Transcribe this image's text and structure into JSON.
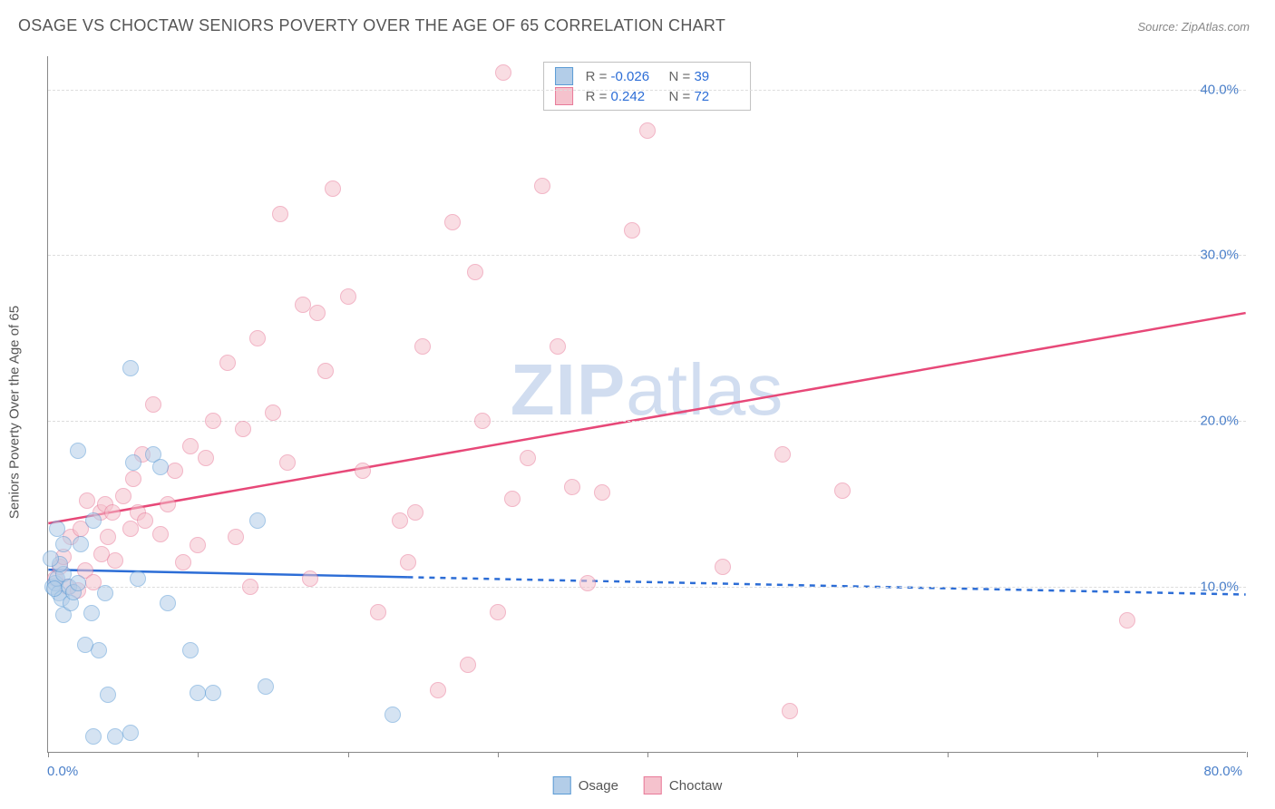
{
  "chart": {
    "title": "OSAGE VS CHOCTAW SENIORS POVERTY OVER THE AGE OF 65 CORRELATION CHART",
    "source_label": "Source: ZipAtlas.com",
    "y_axis_title": "Seniors Poverty Over the Age of 65",
    "watermark": {
      "zip": "ZIP",
      "atlas": "atlas"
    },
    "xlim": [
      0,
      80
    ],
    "ylim": [
      0,
      42
    ],
    "x_ticks": [
      0,
      10,
      20,
      30,
      40,
      50,
      60,
      70,
      80
    ],
    "x_tick_labels": {
      "start": "0.0%",
      "end": "80.0%"
    },
    "y_gridlines": [
      10,
      20,
      30,
      40
    ],
    "y_tick_labels": [
      "10.0%",
      "20.0%",
      "30.0%",
      "40.0%"
    ],
    "grid_color": "#dddddd",
    "series": {
      "osage": {
        "label": "Osage",
        "fill": "#b3cde8",
        "stroke": "#5b9bd5",
        "fill_opacity": 0.55,
        "R": "-0.026",
        "N": "39",
        "trend": {
          "y_at_xmin": 11.0,
          "y_at_xmax": 9.5,
          "solid_until_x": 24,
          "color": "#2c6dd6",
          "width": 2.5
        },
        "points": [
          [
            0.3,
            10.0
          ],
          [
            0.5,
            10.2
          ],
          [
            0.7,
            9.6
          ],
          [
            0.6,
            10.5
          ],
          [
            0.9,
            9.3
          ],
          [
            0.4,
            9.9
          ],
          [
            1.0,
            10.8
          ],
          [
            0.8,
            11.4
          ],
          [
            1.0,
            12.6
          ],
          [
            0.2,
            11.7
          ],
          [
            0.6,
            13.5
          ],
          [
            1.0,
            8.3
          ],
          [
            1.4,
            10.0
          ],
          [
            1.5,
            9.0
          ],
          [
            1.7,
            9.7
          ],
          [
            2.0,
            10.2
          ],
          [
            2.2,
            12.6
          ],
          [
            2.0,
            18.2
          ],
          [
            3.0,
            14.0
          ],
          [
            2.9,
            8.4
          ],
          [
            3.4,
            6.2
          ],
          [
            3.8,
            9.6
          ],
          [
            4.0,
            3.5
          ],
          [
            5.5,
            23.2
          ],
          [
            5.7,
            17.5
          ],
          [
            6.0,
            10.5
          ],
          [
            7.0,
            18.0
          ],
          [
            7.5,
            17.2
          ],
          [
            8.0,
            9.0
          ],
          [
            9.5,
            6.2
          ],
          [
            10.0,
            3.6
          ],
          [
            11.0,
            3.6
          ],
          [
            14.0,
            14.0
          ],
          [
            14.5,
            4.0
          ],
          [
            4.5,
            1.0
          ],
          [
            5.5,
            1.2
          ],
          [
            3.0,
            1.0
          ],
          [
            2.5,
            6.5
          ],
          [
            23.0,
            2.3
          ]
        ]
      },
      "choctaw": {
        "label": "Choctaw",
        "fill": "#f5c2cd",
        "stroke": "#e87a99",
        "fill_opacity": 0.55,
        "R": "0.242",
        "N": "72",
        "trend": {
          "y_at_xmin": 13.8,
          "y_at_xmax": 26.5,
          "solid_until_x": 80,
          "color": "#e74878",
          "width": 2.5
        },
        "points": [
          [
            0.5,
            10.5
          ],
          [
            0.8,
            11.2
          ],
          [
            1.0,
            11.8
          ],
          [
            1.3,
            10.0
          ],
          [
            1.5,
            13.0
          ],
          [
            2.0,
            9.8
          ],
          [
            2.2,
            13.5
          ],
          [
            2.5,
            11.0
          ],
          [
            2.6,
            15.2
          ],
          [
            3.0,
            10.3
          ],
          [
            3.5,
            14.5
          ],
          [
            3.6,
            12.0
          ],
          [
            3.8,
            15.0
          ],
          [
            4.0,
            13.0
          ],
          [
            4.3,
            14.5
          ],
          [
            4.5,
            11.6
          ],
          [
            5.0,
            15.5
          ],
          [
            5.5,
            13.5
          ],
          [
            5.7,
            16.5
          ],
          [
            6.0,
            14.5
          ],
          [
            6.3,
            18.0
          ],
          [
            6.5,
            14.0
          ],
          [
            7.0,
            21.0
          ],
          [
            7.5,
            13.2
          ],
          [
            8.0,
            15.0
          ],
          [
            8.5,
            17.0
          ],
          [
            9.0,
            11.5
          ],
          [
            9.5,
            18.5
          ],
          [
            10.0,
            12.5
          ],
          [
            10.5,
            17.8
          ],
          [
            11.0,
            20.0
          ],
          [
            12.0,
            23.5
          ],
          [
            12.5,
            13.0
          ],
          [
            13.0,
            19.5
          ],
          [
            14.0,
            25.0
          ],
          [
            15.0,
            20.5
          ],
          [
            15.5,
            32.5
          ],
          [
            16.0,
            17.5
          ],
          [
            17.0,
            27.0
          ],
          [
            17.5,
            10.5
          ],
          [
            18.0,
            26.5
          ],
          [
            18.5,
            23.0
          ],
          [
            19.0,
            34.0
          ],
          [
            20.0,
            27.5
          ],
          [
            21.0,
            17.0
          ],
          [
            22.0,
            8.5
          ],
          [
            23.5,
            14.0
          ],
          [
            24.0,
            11.5
          ],
          [
            25.0,
            24.5
          ],
          [
            26.0,
            3.8
          ],
          [
            27.0,
            32.0
          ],
          [
            28.0,
            5.3
          ],
          [
            28.5,
            29.0
          ],
          [
            29.0,
            20.0
          ],
          [
            30.0,
            8.5
          ],
          [
            30.4,
            41.0
          ],
          [
            31.0,
            15.3
          ],
          [
            32.0,
            17.8
          ],
          [
            33.0,
            34.2
          ],
          [
            34.0,
            24.5
          ],
          [
            35.0,
            16.0
          ],
          [
            36.0,
            10.2
          ],
          [
            37.0,
            15.7
          ],
          [
            39.0,
            31.5
          ],
          [
            40.0,
            37.5
          ],
          [
            45.0,
            11.2
          ],
          [
            49.0,
            18.0
          ],
          [
            49.5,
            2.5
          ],
          [
            53.0,
            15.8
          ],
          [
            72.0,
            8.0
          ],
          [
            24.5,
            14.5
          ],
          [
            13.5,
            10.0
          ]
        ]
      }
    },
    "legend_top": {
      "R_label": "R =",
      "N_label": "N ="
    }
  }
}
